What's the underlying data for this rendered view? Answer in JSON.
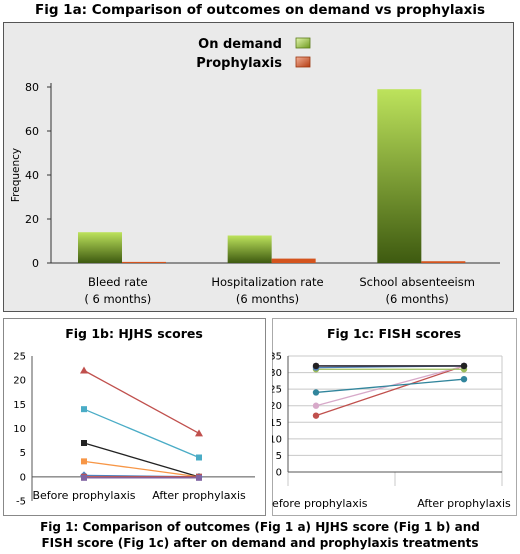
{
  "figure_title": "Fig 1a: Comparison of outcomes on demand vs prophylaxis",
  "caption": {
    "line1": "Fig 1: Comparison of outcomes (Fig 1 a) HJHS score (Fig 1 b) and",
    "line2": "FISH score (Fig 1c) after on demand and prophylaxis treatments"
  },
  "colors": {
    "on_demand_light": "#bde35c",
    "on_demand_dark": "#3e5a10",
    "prophylaxis": "#d4541e",
    "panel_bg": "#eaeaea"
  },
  "chart_data": [
    {
      "id": "fig1a",
      "type": "bar",
      "title": "",
      "ylabel": "Frequency",
      "xlabel": "",
      "ylim": [
        0,
        80
      ],
      "yticks": [
        0,
        20,
        40,
        60,
        80
      ],
      "grid": false,
      "legend": "top-center",
      "categories": [
        {
          "line1": "Bleed rate",
          "line2": "( 6 months)"
        },
        {
          "line1": "Hospitalization rate",
          "line2": "(6 months)"
        },
        {
          "line1": "School absenteeism",
          "line2": "(6 months)"
        }
      ],
      "series": [
        {
          "name": "On demand",
          "values": [
            14,
            12.5,
            79
          ]
        },
        {
          "name": "Prophylaxis",
          "values": [
            0.5,
            2,
            0.8
          ]
        }
      ]
    },
    {
      "id": "fig1b",
      "type": "line",
      "title": "Fig 1b: HJHS scores",
      "ylim": [
        -5,
        25
      ],
      "yticks": [
        -5,
        0,
        5,
        10,
        15,
        20,
        25
      ],
      "grid": false,
      "categories": [
        "Before prophylaxis",
        "After prophylaxis"
      ],
      "series": [
        {
          "color": "#c0504d",
          "marker": "triangle",
          "values": [
            22,
            9
          ]
        },
        {
          "color": "#4aacc6",
          "marker": "square",
          "values": [
            14,
            4
          ]
        },
        {
          "color": "#222222",
          "marker": "square",
          "values": [
            7,
            0
          ]
        },
        {
          "color": "#f79646",
          "marker": "square",
          "values": [
            3.2,
            0
          ]
        },
        {
          "color": "#4f81bd",
          "marker": "diamond",
          "values": [
            0.3,
            0
          ]
        },
        {
          "color": "#c0504d",
          "marker": "square",
          "values": [
            0,
            0
          ]
        },
        {
          "color": "#8064a2",
          "marker": "square",
          "values": [
            -0.2,
            -0.2
          ]
        }
      ]
    },
    {
      "id": "fig1c",
      "type": "line",
      "title": "Fig 1c: FISH scores",
      "ylim": [
        0,
        35
      ],
      "yticks": [
        0,
        5,
        10,
        15,
        20,
        25,
        30,
        35
      ],
      "grid": true,
      "categories": [
        "Before prophylaxis",
        "After prophylaxis"
      ],
      "series": [
        {
          "color": "#c0504d",
          "marker": "circle",
          "values": [
            17,
            32
          ]
        },
        {
          "color": "#d7a9c9",
          "marker": "circle",
          "values": [
            20,
            32
          ]
        },
        {
          "color": "#31859c",
          "marker": "circle",
          "values": [
            24,
            28
          ]
        },
        {
          "color": "#9bbb59",
          "marker": "circle",
          "values": [
            31,
            31
          ]
        },
        {
          "color": "#4f81bd",
          "marker": "circle",
          "values": [
            31.5,
            32
          ]
        },
        {
          "color": "#8064a2",
          "marker": "circle",
          "values": [
            32,
            32
          ]
        },
        {
          "color": "#222222",
          "marker": "circle",
          "values": [
            32,
            32
          ]
        }
      ]
    }
  ]
}
